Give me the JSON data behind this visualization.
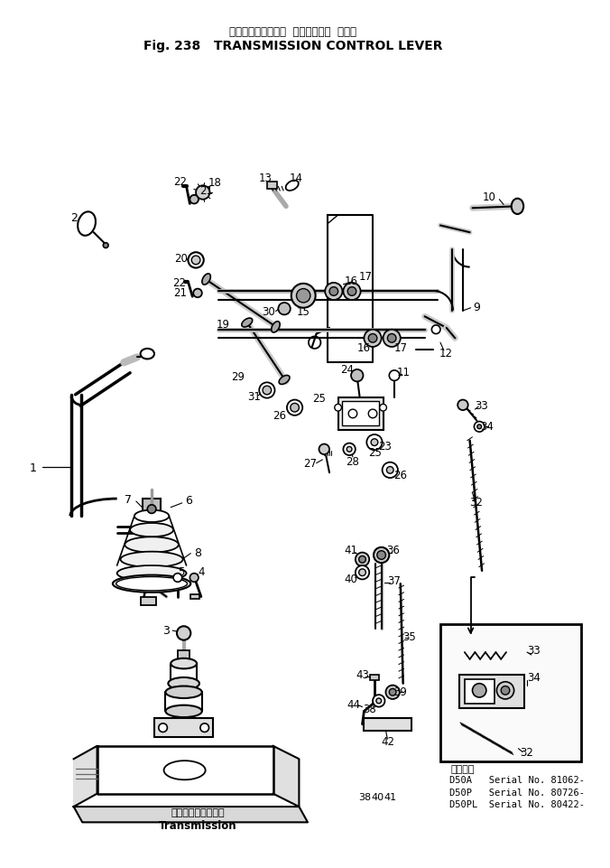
{
  "title_jp": "トランスミッション  コントロール  レバー",
  "title_en": "Fig. 238   TRANSMISSION CONTROL LEVER",
  "bg_color": "#ffffff",
  "figsize": [
    6.76,
    9.61
  ],
  "dpi": 100,
  "bottom_label_jp": "トランスミッション",
  "bottom_label_en": "Transmission",
  "serial_title": "通用号機",
  "serials": [
    "D50A   Serial No. 81062-",
    "D50P   Serial No. 80726-",
    "D50PL  Serial No. 80422-"
  ]
}
